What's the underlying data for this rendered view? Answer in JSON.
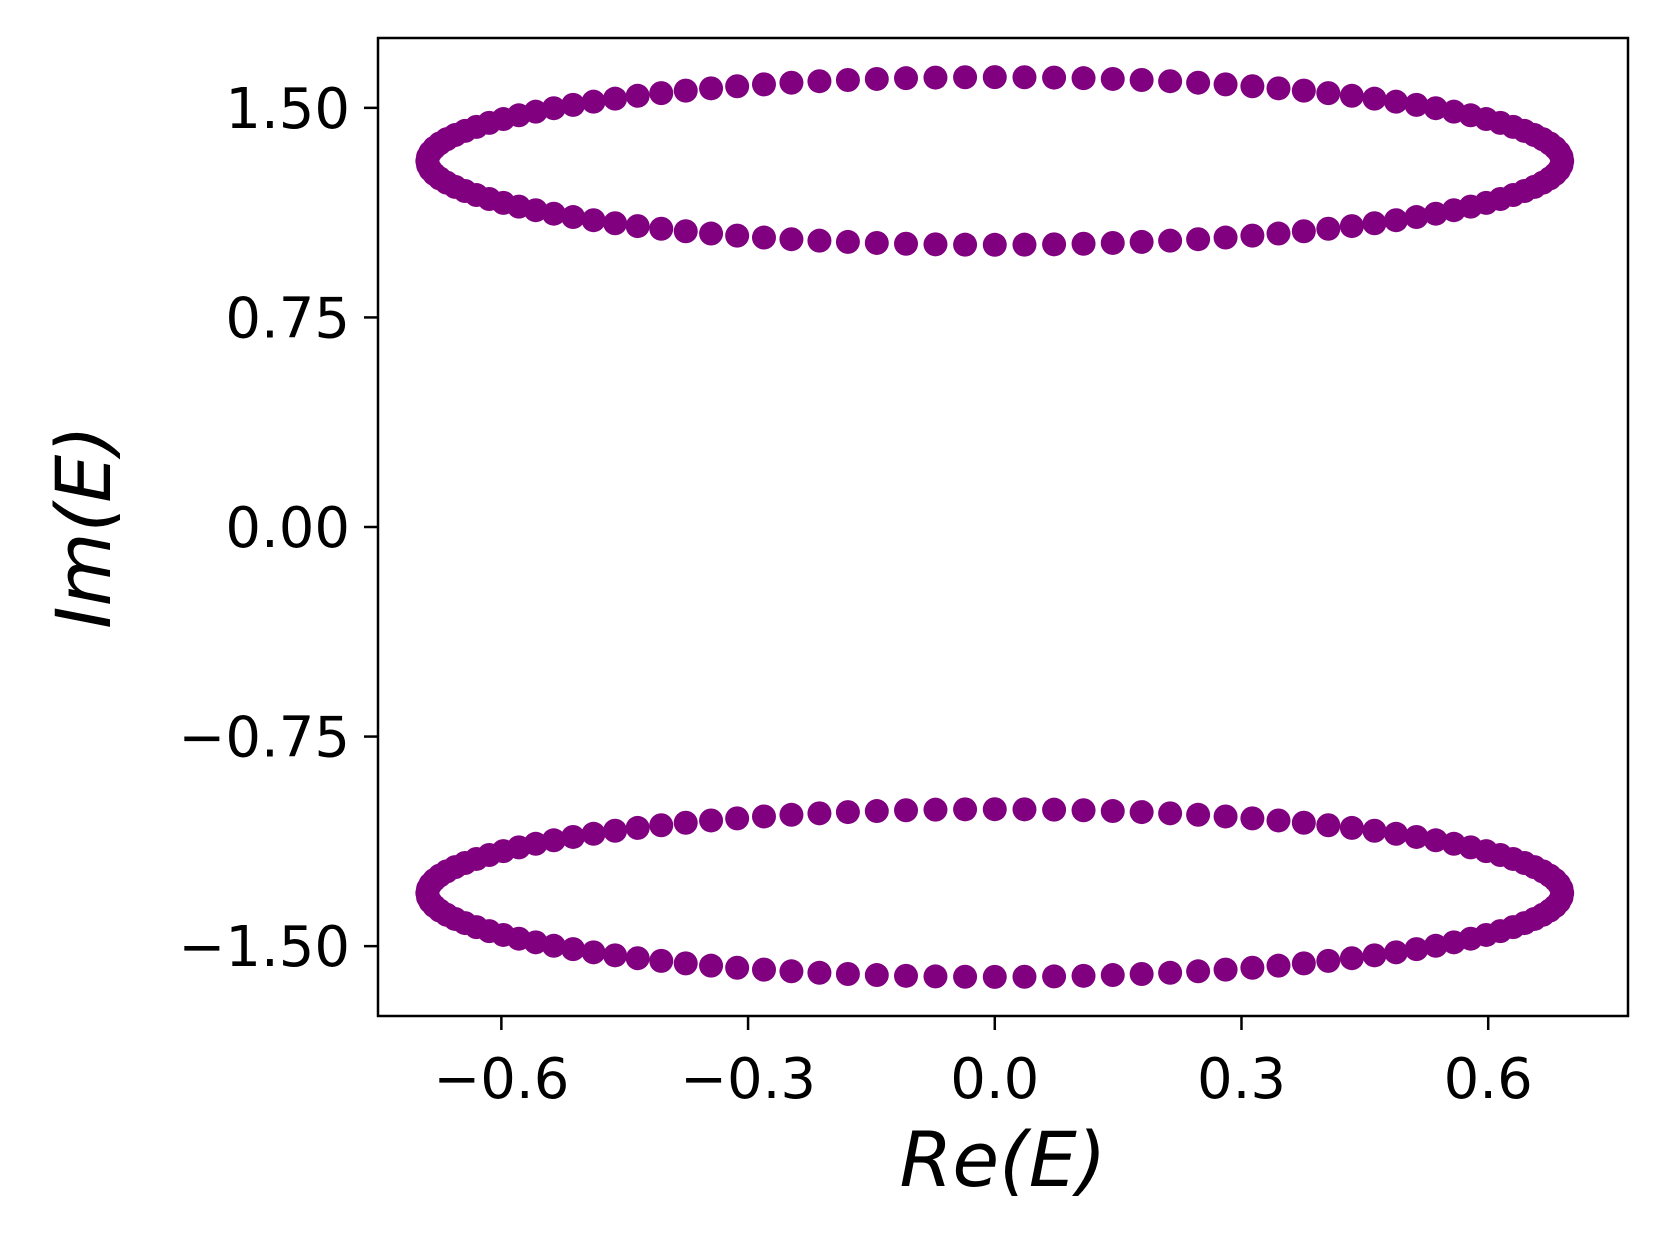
{
  "chart_data": {
    "type": "scatter",
    "title": "",
    "xlabel": "Re(E)",
    "ylabel": "Im(E)",
    "xlim": [
      -0.75,
      0.77
    ],
    "ylim": [
      -1.75,
      1.75
    ],
    "grid": false,
    "legend": "none",
    "marker_color": "#800080",
    "x_ticks": [
      -0.6,
      -0.3,
      0.0,
      0.3,
      0.6
    ],
    "x_tick_labels": [
      "−0.6",
      "−0.3",
      "0.0",
      "0.3",
      "0.6"
    ],
    "y_ticks": [
      1.5,
      0.75,
      0.0,
      -0.75,
      -1.5
    ],
    "y_tick_labels": [
      "1.50",
      "0.75",
      "0.00",
      "−0.75",
      "−1.50"
    ],
    "series": [
      {
        "parametric": "ellipse",
        "center": [
          0.0,
          1.31
        ],
        "semi_axes": [
          0.69,
          0.3
        ],
        "n_points": 120
      },
      {
        "parametric": "ellipse",
        "center": [
          0.0,
          -1.31
        ],
        "semi_axes": [
          0.69,
          0.3
        ],
        "n_points": 120
      }
    ]
  }
}
